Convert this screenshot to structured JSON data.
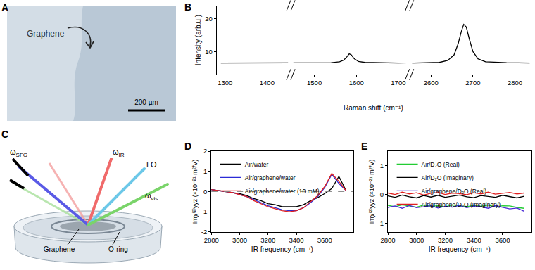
{
  "chart_data": [
    {
      "type": "line",
      "title": "B",
      "x_label": "Raman shift (cm⁻¹)",
      "y_label": "Intensity (arb.u.)",
      "x": [
        1290,
        1350,
        1400,
        1450,
        1460,
        1540,
        1560,
        1570,
        1578,
        1583,
        1588,
        1595,
        1605,
        1620,
        1700,
        2560,
        2620,
        2640,
        2655,
        2665,
        2672,
        2678,
        2684,
        2692,
        2700,
        2712,
        2730,
        2780,
        2840
      ],
      "series": [
        {
          "color": "#000000",
          "values": [
            6.5,
            6.5,
            6.6,
            6.5,
            6.5,
            6.6,
            6.9,
            7.4,
            8.5,
            9.3,
            9.0,
            7.8,
            7.0,
            6.7,
            6.5,
            6.5,
            6.7,
            7.3,
            9.0,
            12.5,
            16.0,
            18.3,
            17.5,
            13.5,
            10.0,
            7.8,
            6.9,
            6.6,
            6.5
          ]
        }
      ],
      "xlim": [
        [
          1280,
          1450
        ],
        [
          1450,
          1720
        ],
        [
          2555,
          2835
        ]
      ],
      "xticks": [
        1300,
        1400,
        1500,
        1600,
        1700,
        2600,
        2700,
        2800
      ],
      "ylim": [
        3,
        24
      ],
      "yticks": [
        10,
        20
      ],
      "grid": false
    },
    {
      "type": "line",
      "title": "D",
      "x_label": "IR frequency (cm⁻¹)",
      "y_label": "Imχ⁽²⁾yyz (×10⁻²¹ m²/V)",
      "x": [
        2800,
        2850,
        2900,
        2950,
        3000,
        3050,
        3100,
        3150,
        3200,
        3250,
        3300,
        3350,
        3400,
        3450,
        3500,
        3550,
        3600,
        3650,
        3700,
        3750
      ],
      "series": [
        {
          "name": "Air/water",
          "color": "#000000",
          "values": [
            0.1,
            0.05,
            0.0,
            -0.05,
            -0.1,
            -0.2,
            -0.35,
            -0.45,
            -0.6,
            -0.65,
            -0.75,
            -0.75,
            -0.75,
            -0.65,
            -0.45,
            -0.3,
            -0.1,
            0.15,
            0.75,
            0.05
          ]
        },
        {
          "name": "Air/graphene/water",
          "color": "#2b2bd6",
          "values": [
            0.1,
            0.05,
            0.0,
            -0.05,
            -0.15,
            -0.25,
            -0.4,
            -0.55,
            -0.7,
            -0.8,
            -0.9,
            -0.95,
            -0.95,
            -0.8,
            -0.55,
            -0.25,
            0.2,
            0.85,
            0.4,
            0.05
          ]
        },
        {
          "name": "Air/graphene/water (10 mM)",
          "color": "#e02020",
          "values": [
            0.1,
            0.05,
            0.0,
            -0.05,
            -0.15,
            -0.25,
            -0.45,
            -0.6,
            -0.75,
            -0.85,
            -0.95,
            -1.0,
            -0.95,
            -0.8,
            -0.5,
            -0.2,
            0.25,
            0.9,
            0.5,
            0.05
          ]
        }
      ],
      "xlim": [
        2800,
        3800
      ],
      "xticks": [
        2800,
        3000,
        3200,
        3400,
        3600
      ],
      "ylim": [
        -2,
        2
      ],
      "yticks": [
        -2,
        -1,
        0,
        1,
        2
      ],
      "hline": 0,
      "legend": "upper left",
      "grid": false
    },
    {
      "type": "line",
      "title": "E",
      "x_label": "IR frequency (cm⁻¹)",
      "y_label": "Imχ⁽²⁾yyz (×10⁻²¹ m²/V)",
      "x": [
        2800,
        2850,
        2900,
        2950,
        3000,
        3050,
        3100,
        3150,
        3200,
        3250,
        3300,
        3350,
        3400,
        3450,
        3500,
        3550,
        3600,
        3650,
        3700,
        3750
      ],
      "series": [
        {
          "name": "Air/D₂O (Real)",
          "color": "#22cc33",
          "values": [
            -0.38,
            -0.42,
            -0.36,
            -0.4,
            -0.44,
            -0.37,
            -0.41,
            -0.39,
            -0.43,
            -0.36,
            -0.4,
            -0.42,
            -0.38,
            -0.41,
            -0.37,
            -0.43,
            -0.39,
            -0.4,
            -0.45,
            -0.48
          ]
        },
        {
          "name": "Air/D₂O (Imaginary)",
          "color": "#000000",
          "values": [
            -0.05,
            -0.1,
            -0.02,
            -0.08,
            -0.12,
            -0.04,
            -0.09,
            -0.03,
            -0.1,
            -0.06,
            -0.02,
            -0.08,
            -0.11,
            -0.04,
            -0.07,
            -0.1,
            -0.03,
            -0.08,
            -0.12,
            -0.06
          ]
        },
        {
          "name": "Air/graphene/D₂O (Real)",
          "color": "#4a2bd6",
          "values": [
            -0.45,
            -0.4,
            -0.48,
            -0.38,
            -0.46,
            -0.42,
            -0.39,
            -0.47,
            -0.41,
            -0.44,
            -0.38,
            -0.46,
            -0.4,
            -0.43,
            -0.48,
            -0.39,
            -0.45,
            -0.5,
            -0.47,
            -0.58
          ]
        },
        {
          "name": "Air/graphene/D₂O (Imaginary)",
          "color": "#e02020",
          "values": [
            0.05,
            0.0,
            0.08,
            0.02,
            0.06,
            -0.02,
            0.04,
            0.07,
            0.0,
            0.05,
            0.03,
            -0.01,
            0.06,
            0.02,
            0.08,
            0.01,
            0.04,
            0.07,
            0.02,
            0.05
          ]
        }
      ],
      "xlim": [
        2800,
        3800
      ],
      "xticks": [
        2800,
        3000,
        3200,
        3400,
        3600
      ],
      "ylim": [
        -1.3,
        1.5
      ],
      "yticks": [
        -1,
        0,
        1
      ],
      "legend": "upper left",
      "grid": false
    }
  ],
  "panels": {
    "A": {
      "label": "A",
      "annotation": "Graphene",
      "scale_bar": "200 µm"
    },
    "C": {
      "label": "C",
      "beams": [
        {
          "symbol": "ω",
          "sub": "SFG"
        },
        {
          "symbol": "ω",
          "sub": "IR"
        },
        {
          "symbol": "LO",
          "sub": ""
        },
        {
          "symbol": "ω",
          "sub": "vis"
        }
      ],
      "sample_labels": [
        "Graphene",
        "O-ring"
      ]
    }
  }
}
